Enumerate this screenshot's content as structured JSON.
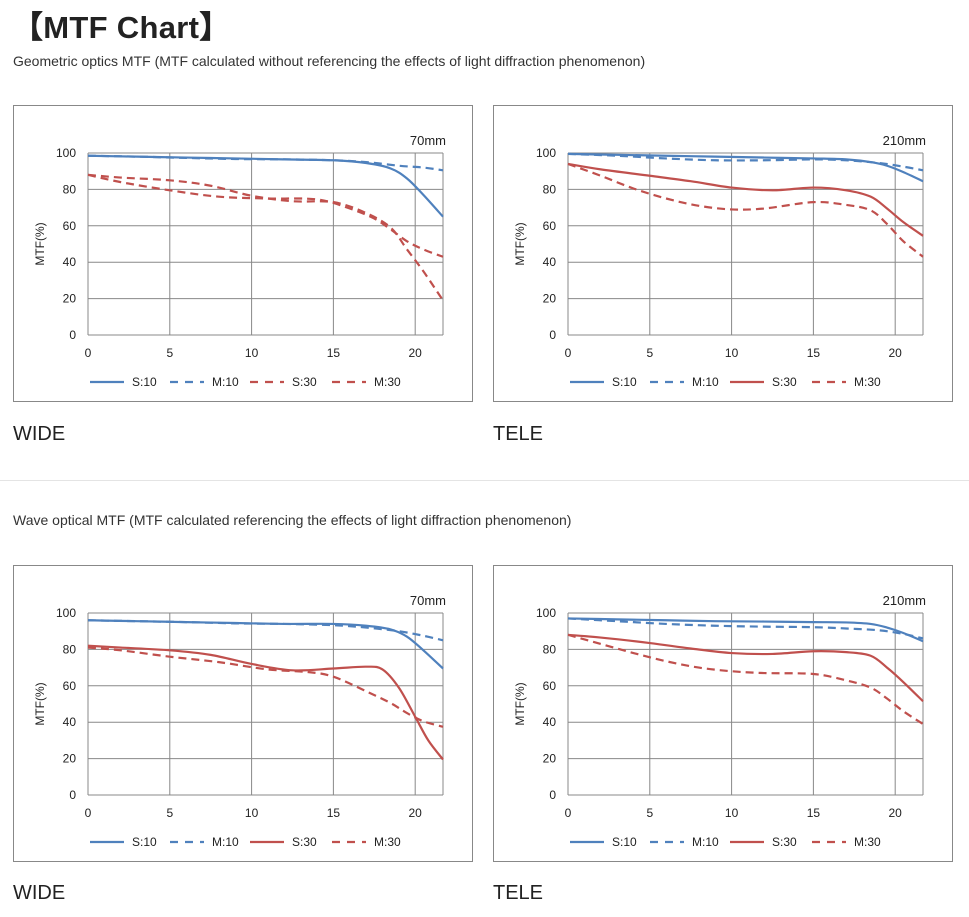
{
  "page": {
    "title": "【MTF Chart】"
  },
  "sections": [
    {
      "description": "Geometric optics MTF (MTF calculated without referencing the effects of light diffraction phenomenon)"
    },
    {
      "description": "Wave optical MTF (MTF calculated referencing the effects of light diffraction phenomenon)"
    }
  ],
  "colors": {
    "blue": "#4f81bd",
    "red": "#c0504d",
    "grid": "#888888"
  },
  "chart_data": [
    {
      "type": "line",
      "caption": "WIDE",
      "title": "70mm",
      "xlabel": "",
      "ylabel": "MTF(%)",
      "xlim": [
        0,
        21.7
      ],
      "ylim": [
        0,
        100
      ],
      "xticks": [
        0,
        5,
        10,
        15,
        20
      ],
      "yticks": [
        0,
        20,
        40,
        60,
        80,
        100
      ],
      "legend_position": "bottom",
      "series": [
        {
          "name": "S:10",
          "color": "#4f81bd",
          "dash": false,
          "x": [
            0,
            3,
            6,
            9,
            12,
            15,
            17,
            18.5,
            19.5,
            20.5,
            21.7
          ],
          "y": [
            98.5,
            98,
            97.5,
            97,
            96.5,
            96,
            94.5,
            91.5,
            86,
            77,
            65
          ]
        },
        {
          "name": "M:10",
          "color": "#4f81bd",
          "dash": true,
          "x": [
            0,
            3,
            6,
            9,
            12,
            15,
            17,
            19,
            20.5,
            21.7
          ],
          "y": [
            98.5,
            98,
            97.3,
            96.7,
            96.5,
            96,
            95,
            93,
            92,
            90.5
          ]
        },
        {
          "name": "S:30",
          "color": "#c0504d",
          "dash": true,
          "x": [
            0,
            2,
            5,
            7.5,
            10,
            12.5,
            15,
            17,
            18.5,
            19.5,
            20.5,
            21.7
          ],
          "y": [
            88,
            86.5,
            85,
            82,
            76.5,
            73.5,
            73,
            67,
            59,
            47,
            35,
            19
          ]
        },
        {
          "name": "M:30",
          "color": "#c0504d",
          "dash": true,
          "x": [
            0,
            2,
            5,
            8,
            11,
            14,
            16,
            17.5,
            18.5,
            19.5,
            20.5,
            21.7
          ],
          "y": [
            88,
            84,
            79.5,
            76,
            75,
            74.5,
            69.5,
            64,
            58,
            51.5,
            47,
            43
          ]
        }
      ]
    },
    {
      "type": "line",
      "caption": "TELE",
      "title": "210mm",
      "xlabel": "",
      "ylabel": "MTF(%)",
      "xlim": [
        0,
        21.7
      ],
      "ylim": [
        0,
        100
      ],
      "xticks": [
        0,
        5,
        10,
        15,
        20
      ],
      "yticks": [
        0,
        20,
        40,
        60,
        80,
        100
      ],
      "legend_position": "bottom",
      "series": [
        {
          "name": "S:10",
          "color": "#4f81bd",
          "dash": false,
          "x": [
            0,
            3,
            6,
            9,
            12,
            15,
            17,
            18.5,
            19.5,
            20.5,
            21.7
          ],
          "y": [
            99.5,
            99,
            98.5,
            98,
            97.5,
            97,
            96.5,
            95,
            93,
            89.5,
            84.5
          ]
        },
        {
          "name": "M:10",
          "color": "#4f81bd",
          "dash": true,
          "x": [
            0,
            3,
            6,
            9,
            12,
            15,
            17,
            19,
            20.5,
            21.7
          ],
          "y": [
            99.5,
            98.5,
            97,
            96,
            96,
            96.5,
            96,
            94.5,
            92.5,
            90.5
          ]
        },
        {
          "name": "S:30",
          "color": "#c0504d",
          "dash": false,
          "x": [
            0,
            2,
            5,
            7.5,
            10,
            12.5,
            15,
            17,
            18.5,
            19.5,
            20.5,
            21.7
          ],
          "y": [
            94,
            91,
            87.5,
            84.5,
            81,
            79.5,
            81,
            79.5,
            76,
            69.5,
            62,
            54.5
          ]
        },
        {
          "name": "M:30",
          "color": "#c0504d",
          "dash": true,
          "x": [
            0,
            2,
            4,
            6,
            8,
            10,
            12,
            15,
            17,
            18.5,
            19.5,
            20.5,
            21.7
          ],
          "y": [
            94,
            87.5,
            80.5,
            75,
            71,
            69,
            69.5,
            73,
            71.5,
            68.5,
            61,
            51.5,
            43
          ]
        }
      ]
    },
    {
      "type": "line",
      "caption": "WIDE",
      "title": "70mm",
      "xlabel": "",
      "ylabel": "MTF(%)",
      "xlim": [
        0,
        21.7
      ],
      "ylim": [
        0,
        100
      ],
      "xticks": [
        0,
        5,
        10,
        15,
        20
      ],
      "yticks": [
        0,
        20,
        40,
        60,
        80,
        100
      ],
      "legend_position": "bottom",
      "series": [
        {
          "name": "S:10",
          "color": "#4f81bd",
          "dash": false,
          "x": [
            0,
            3,
            6,
            9,
            12,
            15,
            17,
            18.5,
            19.5,
            20.5,
            21.7
          ],
          "y": [
            96,
            95.5,
            95,
            94.5,
            94,
            94,
            93,
            91,
            87,
            79.5,
            69.5
          ]
        },
        {
          "name": "M:10",
          "color": "#4f81bd",
          "dash": true,
          "x": [
            0,
            3,
            6,
            9,
            12,
            15,
            17,
            19,
            20.5,
            21.7
          ],
          "y": [
            96,
            95.5,
            95,
            94.3,
            94,
            93.3,
            92,
            90,
            87.5,
            85
          ]
        },
        {
          "name": "S:30",
          "color": "#c0504d",
          "dash": false,
          "x": [
            0,
            2,
            5,
            7.5,
            10,
            12.5,
            15,
            17,
            18,
            19,
            20,
            20.8,
            21.7
          ],
          "y": [
            82,
            81,
            79.5,
            77,
            72,
            68.5,
            69.5,
            70.5,
            69,
            59,
            43,
            30,
            19.5
          ]
        },
        {
          "name": "M:30",
          "color": "#c0504d",
          "dash": true,
          "x": [
            0,
            2,
            5,
            8,
            11,
            13.5,
            15,
            17,
            18.5,
            19.5,
            20.5,
            21.7
          ],
          "y": [
            81,
            79.5,
            76,
            73,
            69,
            67.5,
            65,
            57,
            50.5,
            45,
            40.5,
            37.5
          ]
        }
      ]
    },
    {
      "type": "line",
      "caption": "TELE",
      "title": "210mm",
      "xlabel": "",
      "ylabel": "MTF(%)",
      "xlim": [
        0,
        21.7
      ],
      "ylim": [
        0,
        100
      ],
      "xticks": [
        0,
        5,
        10,
        15,
        20
      ],
      "yticks": [
        0,
        20,
        40,
        60,
        80,
        100
      ],
      "legend_position": "bottom",
      "series": [
        {
          "name": "S:10",
          "color": "#4f81bd",
          "dash": false,
          "x": [
            0,
            3,
            6,
            9,
            12,
            15,
            17,
            18.5,
            19.5,
            20.5,
            21.7
          ],
          "y": [
            97,
            96.5,
            96,
            95.5,
            95.3,
            95,
            94.8,
            94,
            92,
            89,
            84.5
          ]
        },
        {
          "name": "M:10",
          "color": "#4f81bd",
          "dash": true,
          "x": [
            0,
            3,
            6,
            9,
            12,
            15,
            17,
            19,
            20.5,
            21.7
          ],
          "y": [
            97,
            95.5,
            94,
            93,
            92.5,
            92.2,
            91.5,
            90.5,
            88.5,
            86
          ]
        },
        {
          "name": "S:30",
          "color": "#c0504d",
          "dash": false,
          "x": [
            0,
            2,
            5,
            7.5,
            10,
            12.5,
            15,
            17,
            18.5,
            19.5,
            20.5,
            21.7
          ],
          "y": [
            88,
            86.5,
            83.5,
            80.5,
            78,
            77.5,
            79,
            78.5,
            76.5,
            70,
            62,
            51.5
          ]
        },
        {
          "name": "M:30",
          "color": "#c0504d",
          "dash": true,
          "x": [
            0,
            2,
            4,
            6,
            8,
            10,
            12,
            15,
            17,
            18.5,
            19.5,
            20.5,
            21.7
          ],
          "y": [
            88,
            83,
            78,
            73.5,
            70,
            68,
            67,
            66.5,
            63,
            59,
            53,
            46,
            39
          ]
        }
      ]
    }
  ]
}
